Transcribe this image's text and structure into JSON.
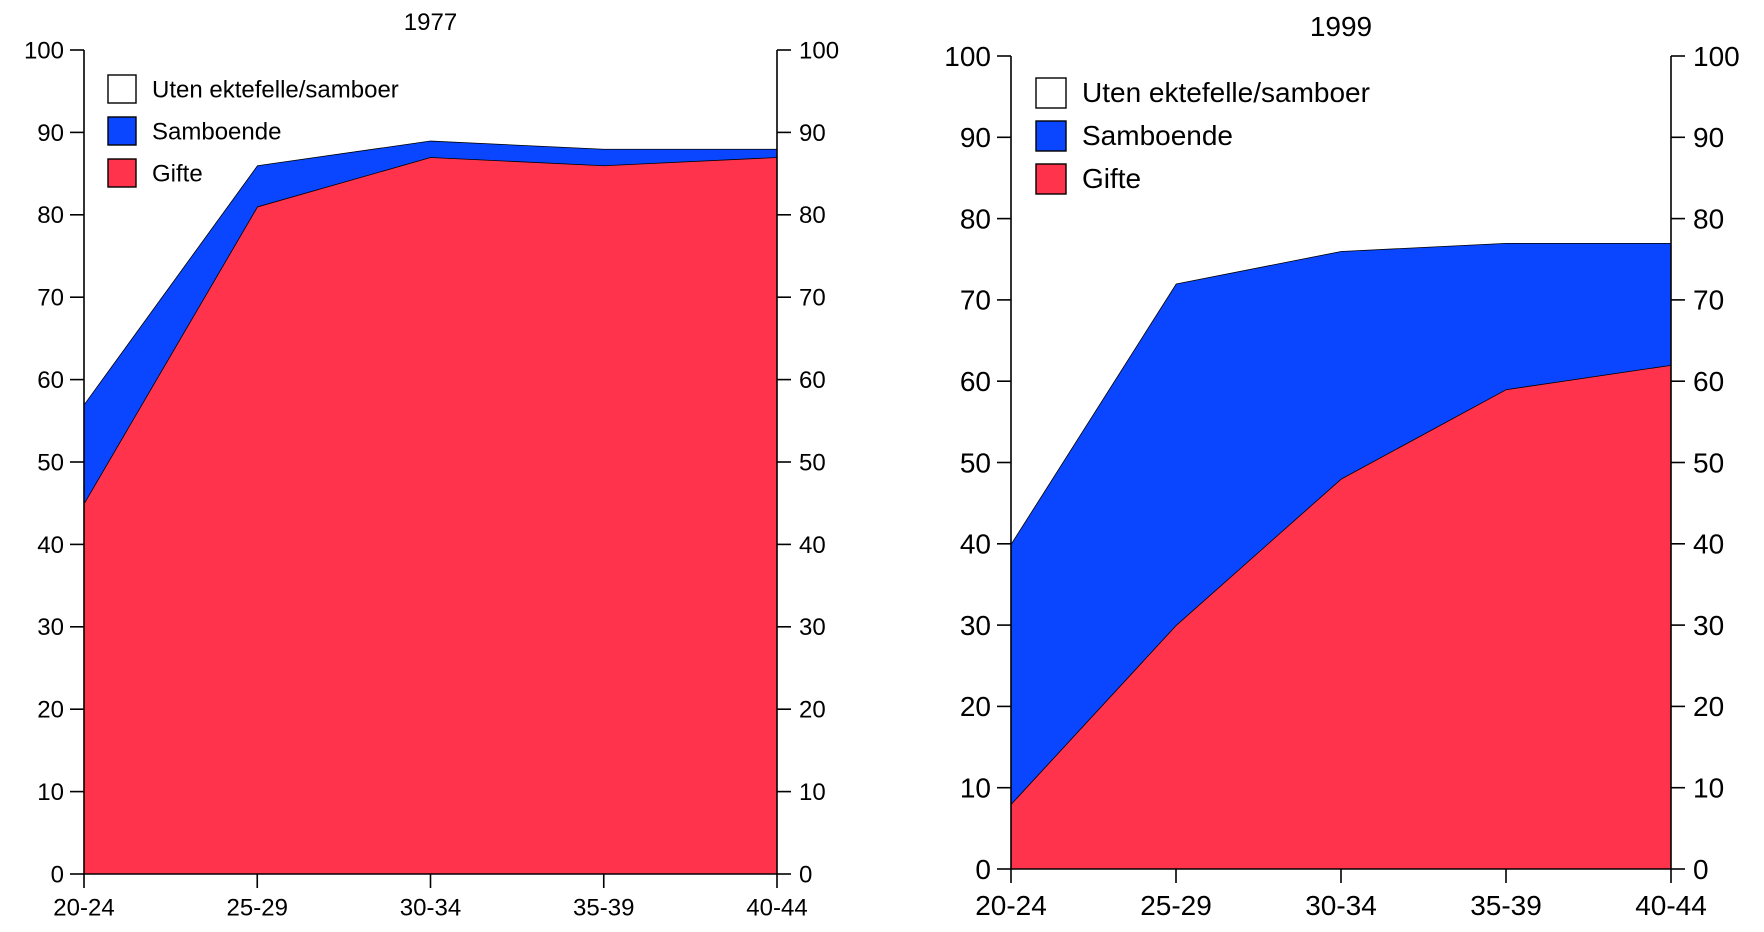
{
  "colors": {
    "gifte": "#ff334c",
    "samboende": "#0a46ff",
    "uten": "#ffffff"
  },
  "legend": [
    {
      "label": "Uten ektefelle/samboer",
      "color": "#ffffff"
    },
    {
      "label": "Samboende",
      "color": "#0a46ff"
    },
    {
      "label": "Gifte",
      "color": "#ff334c"
    }
  ],
  "chart_data": [
    {
      "type": "area",
      "stacked": true,
      "title": "1977",
      "categories": [
        "20-24",
        "25-29",
        "30-34",
        "35-39",
        "40-44"
      ],
      "series": [
        {
          "name": "Gifte",
          "values": [
            45,
            81,
            87,
            86,
            87
          ]
        },
        {
          "name": "Samboende",
          "values": [
            12,
            5,
            2,
            2,
            1
          ]
        },
        {
          "name": "Uten ektefelle/samboer",
          "values": [
            43,
            14,
            11,
            12,
            12
          ]
        }
      ],
      "ylim": [
        0,
        100
      ],
      "yticks": [
        0,
        10,
        20,
        30,
        40,
        50,
        60,
        70,
        80,
        90,
        100
      ],
      "grid": false,
      "legend_position": "top-left",
      "right_axis": true
    },
    {
      "type": "area",
      "stacked": true,
      "title": "1999",
      "categories": [
        "20-24",
        "25-29",
        "30-34",
        "35-39",
        "40-44"
      ],
      "series": [
        {
          "name": "Gifte",
          "values": [
            8,
            30,
            48,
            59,
            62
          ]
        },
        {
          "name": "Samboende",
          "values": [
            32,
            42,
            28,
            18,
            15
          ]
        },
        {
          "name": "Uten ektefelle/samboer",
          "values": [
            60,
            28,
            24,
            23,
            23
          ]
        }
      ],
      "ylim": [
        0,
        100
      ],
      "yticks": [
        0,
        10,
        20,
        30,
        40,
        50,
        60,
        70,
        80,
        90,
        100
      ],
      "grid": false,
      "legend_position": "top-left",
      "right_axis": true
    }
  ]
}
